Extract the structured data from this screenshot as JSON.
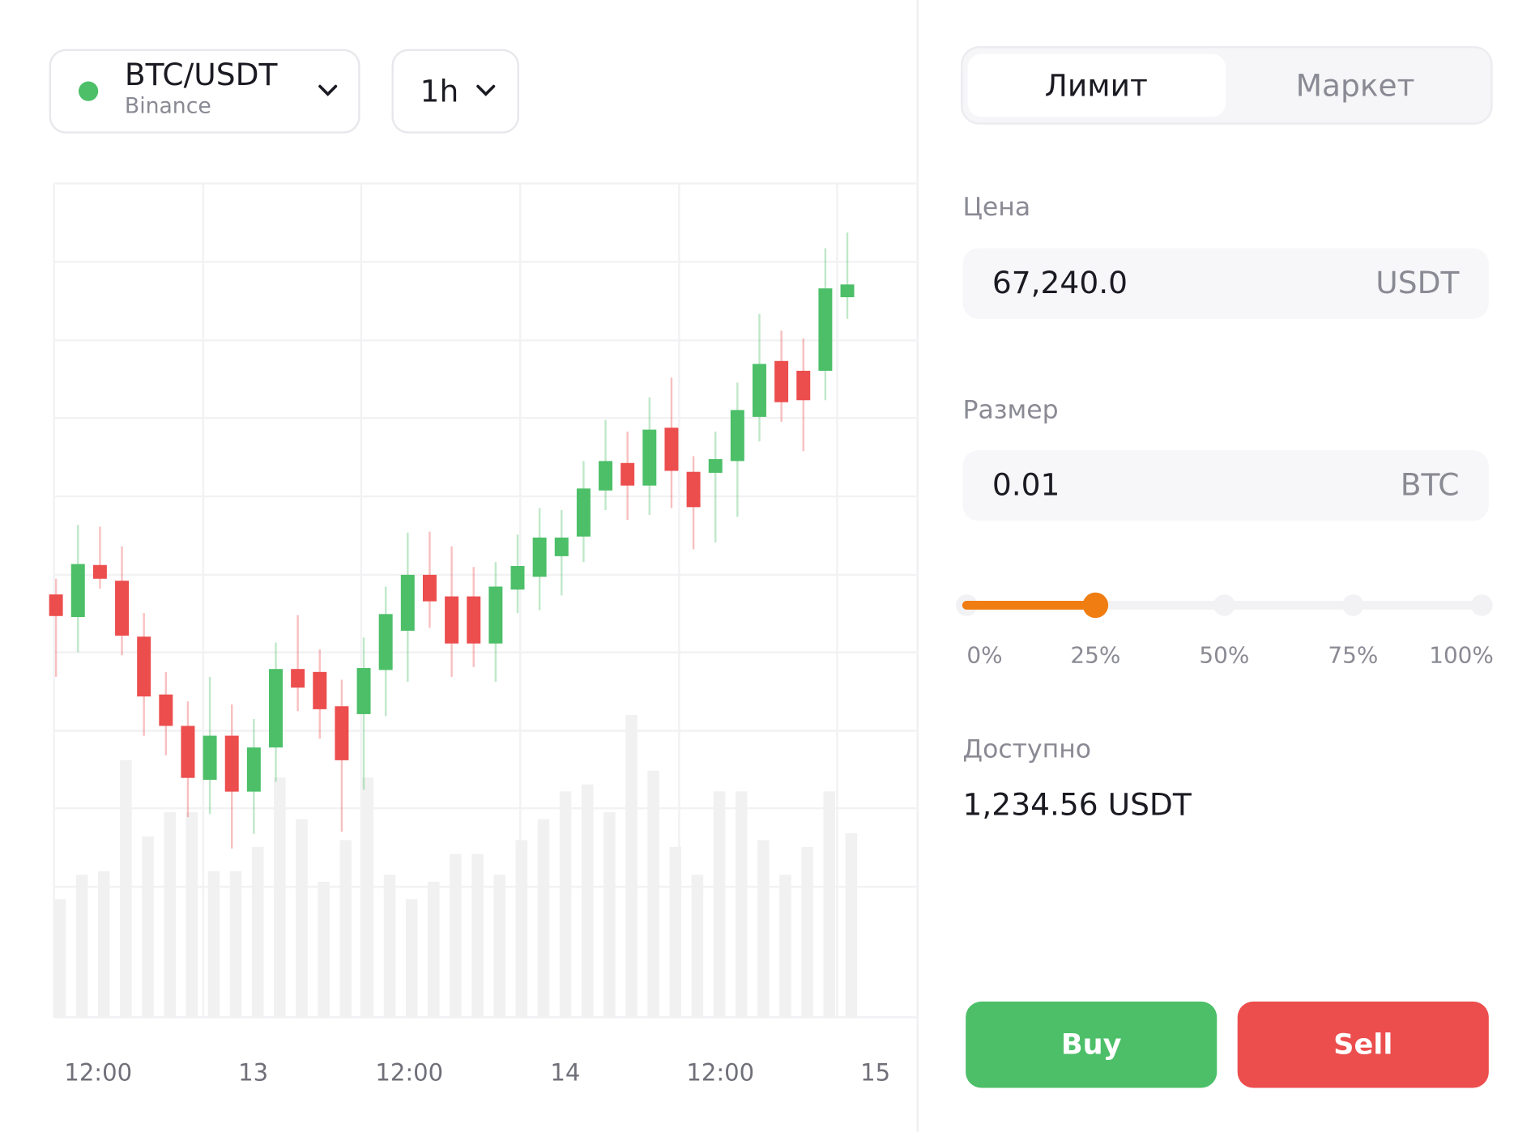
{
  "pair": {
    "symbol": "BTC/USDT",
    "exchange": "Binance"
  },
  "interval": "1h",
  "chart_data": {
    "type": "candlestick",
    "ylim": [
      63,
      913
    ],
    "volume_lim": [
      0,
      120
    ],
    "x_labels": [
      "12:00",
      "13",
      "12:00",
      "14",
      "12:00",
      "15"
    ],
    "up_color": "#4cbf68",
    "down_color": "#ec4d4d",
    "volume_color": "#f1f1f1",
    "open": [
      494,
      471,
      524,
      508,
      451,
      392,
      360,
      305,
      350,
      293,
      338,
      418,
      415,
      380,
      372,
      417,
      457,
      514,
      492,
      492,
      444,
      499,
      512,
      533,
      553,
      600,
      628,
      605,
      664,
      619,
      618,
      630,
      675,
      732,
      722,
      722,
      797
    ],
    "high": [
      510,
      565,
      563,
      543,
      475,
      415,
      385,
      410,
      382,
      367,
      445,
      473,
      438,
      407,
      450,
      502,
      557,
      558,
      543,
      522,
      527,
      555,
      582,
      580,
      630,
      672,
      660,
      695,
      715,
      635,
      660,
      710,
      780,
      763,
      755,
      847,
      863
    ],
    "low": [
      410,
      435,
      500,
      432,
      350,
      330,
      267,
      270,
      235,
      250,
      303,
      375,
      347,
      252,
      295,
      370,
      405,
      460,
      410,
      420,
      405,
      475,
      478,
      493,
      527,
      580,
      570,
      575,
      582,
      540,
      547,
      573,
      650,
      670,
      640,
      692,
      775
    ],
    "close": [
      472,
      525,
      510,
      452,
      390,
      360,
      307,
      350,
      293,
      338,
      418,
      399,
      377,
      325,
      419,
      474,
      514,
      487,
      444,
      444,
      502,
      523,
      552,
      552,
      602,
      630,
      605,
      662,
      620,
      583,
      632,
      682,
      729,
      690,
      692,
      806,
      810
    ],
    "volume": [
      34,
      41,
      42,
      74,
      52,
      59,
      59,
      42,
      42,
      49,
      69,
      57,
      39,
      51,
      69,
      41,
      34,
      39,
      47,
      47,
      41,
      51,
      57,
      65,
      67,
      59,
      87,
      71,
      49,
      41,
      65,
      65,
      51,
      41,
      49,
      65,
      53
    ]
  },
  "order": {
    "tabs": [
      "Лимит",
      "Маркет"
    ],
    "price_label": "Цена",
    "price_value": "67,240.0",
    "price_unit": "USDT",
    "size_label": "Размер",
    "size_value": "0.01",
    "size_unit": "BTC",
    "slider": {
      "value": 25,
      "ticks": [
        {
          "value": 0,
          "label": "0%"
        },
        {
          "value": 25,
          "label": "25%"
        },
        {
          "value": 50,
          "label": "50%"
        },
        {
          "value": 75,
          "label": "75%"
        },
        {
          "value": 100,
          "label": "100%"
        }
      ]
    },
    "available_label": "Доступно",
    "available_value": "1,234.56 USDT",
    "buy": "Buy",
    "sell": "Sell"
  }
}
